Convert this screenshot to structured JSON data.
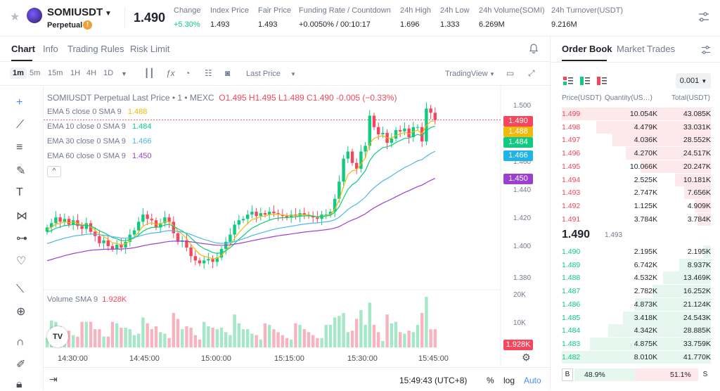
{
  "header": {
    "symbol": "SOMIUSDT",
    "subtitle": "Perpetual",
    "warn_icon": "!",
    "last_price": "1.490",
    "stats": [
      {
        "label": "Change",
        "value": "+5.30%",
        "green": true
      },
      {
        "label": "Index Price",
        "value": "1.493"
      },
      {
        "label": "Fair Price",
        "value": "1.493"
      },
      {
        "label": "Funding Rate / Countdown",
        "value": "+0.0050% / 00:10:17"
      },
      {
        "label": "24h High",
        "value": "1.696"
      },
      {
        "label": "24h Low",
        "value": "1.333"
      },
      {
        "label": "24h Volume(SOMI)",
        "value": "6.269M"
      },
      {
        "label": "24h Turnover(USDT)",
        "value": "9.216M"
      }
    ]
  },
  "tabs": [
    "Chart",
    "Info",
    "Trading Rules",
    "Risk Limit"
  ],
  "toolbar": {
    "timeframes": [
      "1m",
      "5m",
      "15m",
      "1H",
      "4H",
      "1D"
    ],
    "price_mode": "Last Price",
    "view": "TradingView"
  },
  "chart": {
    "title": "SOMIUSDT Perpetual Last Price • 1 • MEXC",
    "ohlc": "O1.495 H1.495 L1.489 C1.490 -0.005 (−0.33%)",
    "emas": [
      {
        "label": "EMA 5 close 0 SMA 9",
        "value": "1.488",
        "color": "#f0b90b"
      },
      {
        "label": "EMA 10 close 0 SMA 9",
        "value": "1.484",
        "color": "#0ecb81"
      },
      {
        "label": "EMA 30 close 0 SMA 9",
        "value": "1.466",
        "color": "#4fb8e6"
      },
      {
        "label": "EMA 60 close 0 SMA 9",
        "value": "1.450",
        "color": "#9b3fd1"
      }
    ],
    "collapse_icon": "^",
    "volume_label": "Volume SMA 9",
    "volume_value": "1.928K",
    "tv_logo": "TV",
    "times": [
      "14:30:00",
      "14:45:00",
      "15:00:00",
      "15:15:00",
      "15:30:00",
      "15:45:00"
    ],
    "price_ticks": [
      "1.500",
      "1.460",
      "1.440",
      "1.420",
      "1.400",
      "1.380"
    ],
    "volume_ticks": [
      "20K",
      "10K"
    ],
    "tags": [
      {
        "value": "1.490",
        "color": "#f6465d"
      },
      {
        "value": "1.488",
        "color": "#f0b90b"
      },
      {
        "value": "1.484",
        "color": "#0ecb81"
      },
      {
        "value": "1.466",
        "color": "#1fb3e8"
      },
      {
        "value": "1.450",
        "color": "#9b3fd1"
      }
    ],
    "clock": "15:49:43 (UTC+8)",
    "pct": "%",
    "log": "log",
    "auto": "Auto"
  },
  "chart_data": {
    "type": "candlestick",
    "title": "SOMIUSDT Perpetual Last Price • 1 • MEXC",
    "ylim": [
      1.375,
      1.505
    ],
    "closes": [
      1.415,
      1.418,
      1.422,
      1.419,
      1.421,
      1.417,
      1.42,
      1.416,
      1.414,
      1.418,
      1.412,
      1.409,
      1.404,
      1.406,
      1.402,
      1.4,
      1.403,
      1.401,
      1.405,
      1.41,
      1.413,
      1.419,
      1.424,
      1.421,
      1.42,
      1.415,
      1.418,
      1.422,
      1.419,
      1.411,
      1.405,
      1.406,
      1.401,
      1.395,
      1.392,
      1.39,
      1.392,
      1.393,
      1.391,
      1.394,
      1.4,
      1.405,
      1.41,
      1.417,
      1.42,
      1.421,
      1.424,
      1.426,
      1.423,
      1.425,
      1.424,
      1.426,
      1.425,
      1.424,
      1.423,
      1.422,
      1.424,
      1.423,
      1.425,
      1.424,
      1.423,
      1.422,
      1.421,
      1.424,
      1.424,
      1.426,
      1.435,
      1.447,
      1.463,
      1.468,
      1.46,
      1.456,
      1.468,
      1.472,
      1.493,
      1.485,
      1.48,
      1.481,
      1.474,
      1.477,
      1.483,
      1.482,
      1.484,
      1.478,
      1.485,
      1.485,
      1.475,
      1.498,
      1.495,
      1.49
    ]
  },
  "orderbook": {
    "tabs": [
      "Order Book",
      "Market Trades"
    ],
    "precision": "0.001",
    "columns": [
      "Price(USDT)",
      "Quantity(US…)",
      "Total(USDT)"
    ],
    "asks": [
      {
        "p": "1.499",
        "q": "10.054K",
        "t": "43.085K",
        "d": 1.0
      },
      {
        "p": "1.498",
        "q": "4.479K",
        "t": "33.031K",
        "d": 0.77
      },
      {
        "p": "1.497",
        "q": "4.036K",
        "t": "28.552K",
        "d": 0.66
      },
      {
        "p": "1.496",
        "q": "4.270K",
        "t": "24.517K",
        "d": 0.57
      },
      {
        "p": "1.495",
        "q": "10.066K",
        "t": "20.247K",
        "d": 0.47
      },
      {
        "p": "1.494",
        "q": "2.525K",
        "t": "10.181K",
        "d": 0.24
      },
      {
        "p": "1.493",
        "q": "2.747K",
        "t": "7.656K",
        "d": 0.18
      },
      {
        "p": "1.492",
        "q": "1.125K",
        "t": "4.909K",
        "d": 0.11
      },
      {
        "p": "1.491",
        "q": "3.784K",
        "t": "3.784K",
        "d": 0.09
      }
    ],
    "mid_price": "1.490",
    "mid_sub": "1.493",
    "bids": [
      {
        "p": "1.490",
        "q": "2.195K",
        "t": "2.195K",
        "d": 0.05
      },
      {
        "p": "1.489",
        "q": "6.742K",
        "t": "8.937K",
        "d": 0.21
      },
      {
        "p": "1.488",
        "q": "4.532K",
        "t": "13.469K",
        "d": 0.32
      },
      {
        "p": "1.487",
        "q": "2.782K",
        "t": "16.252K",
        "d": 0.39
      },
      {
        "p": "1.486",
        "q": "4.873K",
        "t": "21.124K",
        "d": 0.51
      },
      {
        "p": "1.485",
        "q": "3.418K",
        "t": "24.543K",
        "d": 0.59
      },
      {
        "p": "1.484",
        "q": "4.342K",
        "t": "28.885K",
        "d": 0.69
      },
      {
        "p": "1.483",
        "q": "4.875K",
        "t": "33.759K",
        "d": 0.81
      },
      {
        "p": "1.482",
        "q": "8.010K",
        "t": "41.770K",
        "d": 1.0
      }
    ],
    "buy_label": "B",
    "buy_pct": "48.9%",
    "buy_ratio": 0.489,
    "sell_pct": "51.1%",
    "sell_label": "S"
  }
}
